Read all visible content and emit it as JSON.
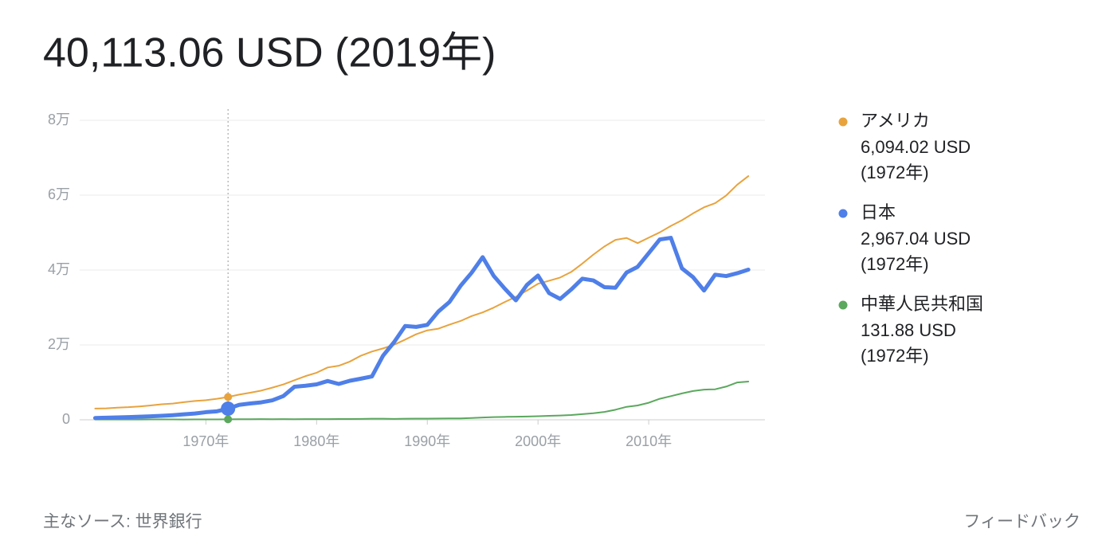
{
  "chart_data": {
    "type": "line",
    "title": "40,113.06 USD (2019年)",
    "x": [
      1960,
      1961,
      1962,
      1963,
      1964,
      1965,
      1966,
      1967,
      1968,
      1969,
      1970,
      1971,
      1972,
      1973,
      1974,
      1975,
      1976,
      1977,
      1978,
      1979,
      1980,
      1981,
      1982,
      1983,
      1984,
      1985,
      1986,
      1987,
      1988,
      1989,
      1990,
      1991,
      1992,
      1993,
      1994,
      1995,
      1996,
      1997,
      1998,
      1999,
      2000,
      2001,
      2002,
      2003,
      2004,
      2005,
      2006,
      2007,
      2008,
      2009,
      2010,
      2011,
      2012,
      2013,
      2014,
      2015,
      2016,
      2017,
      2018,
      2019
    ],
    "xlim": [
      1958.6,
      2020.5
    ],
    "xticks": [
      {
        "value": 1970,
        "label": "1970年"
      },
      {
        "value": 1980,
        "label": "1980年"
      },
      {
        "value": 1990,
        "label": "1990年"
      },
      {
        "value": 2000,
        "label": "2000年"
      },
      {
        "value": 2010,
        "label": "2010年"
      }
    ],
    "ylim": [
      0,
      80000
    ],
    "yticks": [
      0,
      {
        "value": 20000,
        "label": "2万"
      },
      {
        "value": 40000,
        "label": "4万"
      },
      {
        "value": 60000,
        "label": "6万"
      },
      {
        "value": 80000,
        "label": "8万"
      }
    ],
    "grid": true,
    "hover": {
      "index": 12,
      "period_label": "(1972年)"
    },
    "series": [
      {
        "name": "アメリカ",
        "color": "#e8a33d",
        "width": 2,
        "hover_label": "6,094.02 USD",
        "values": [
          3007,
          3067,
          3244,
          3375,
          3574,
          3828,
          4146,
          4336,
          4696,
          5032,
          5234,
          5609,
          6094,
          6726,
          7226,
          7801,
          8592,
          9453,
          10565,
          11674,
          12575,
          13976,
          14434,
          15544,
          17121,
          18237,
          19071,
          20039,
          21417,
          22857,
          23889,
          24342,
          25419,
          26387,
          27695,
          28691,
          29968,
          31459,
          32854,
          34515,
          36330,
          37134,
          37998,
          39490,
          41725,
          44123,
          46302,
          48050,
          48570,
          47195,
          48651,
          50066,
          51784,
          53291,
          55124,
          56763,
          57867,
          59915,
          62805,
          65095
        ]
      },
      {
        "name": "日本",
        "color": "#4f7fe8",
        "width": 5,
        "hover_label": "2,967.04 USD",
        "values": [
          479,
          564,
          634,
          717,
          835,
          919,
          1058,
          1229,
          1451,
          1669,
          2037,
          2272,
          2967,
          3997,
          4354,
          4659,
          5197,
          6335,
          8821,
          9105,
          9463,
          10361,
          9578,
          10425,
          10984,
          11585,
          17112,
          20745,
          25051,
          24813,
          25359,
          28925,
          31465,
          35766,
          39269,
          43440,
          38437,
          35022,
          31903,
          36027,
          38532,
          33846,
          32289,
          34808,
          37689,
          37218,
          35434,
          35275,
          39339,
          40855,
          44508,
          48168,
          48603,
          40454,
          38109,
          34524,
          38762,
          38387,
          39159,
          40113
        ]
      },
      {
        "name": "中華人民共和国",
        "color": "#5ba85e",
        "width": 2,
        "hover_label": "131.88 USD",
        "values": [
          90,
          76,
          70,
          74,
          85,
          98,
          104,
          96,
          91,
          100,
          113,
          119,
          132,
          157,
          160,
          178,
          165,
          185,
          156,
          184,
          195,
          197,
          203,
          225,
          250,
          294,
          282,
          252,
          284,
          311,
          318,
          333,
          366,
          377,
          473,
          610,
          709,
          782,
          829,
          873,
          959,
          1053,
          1149,
          1289,
          1509,
          1753,
          2099,
          2694,
          3468,
          3832,
          4550,
          5618,
          6317,
          7051,
          7679,
          8067,
          8148,
          8879,
          9977,
          10217
        ]
      }
    ]
  },
  "footer": {
    "source": "主なソース: 世界銀行",
    "feedback": "フィードバック"
  }
}
